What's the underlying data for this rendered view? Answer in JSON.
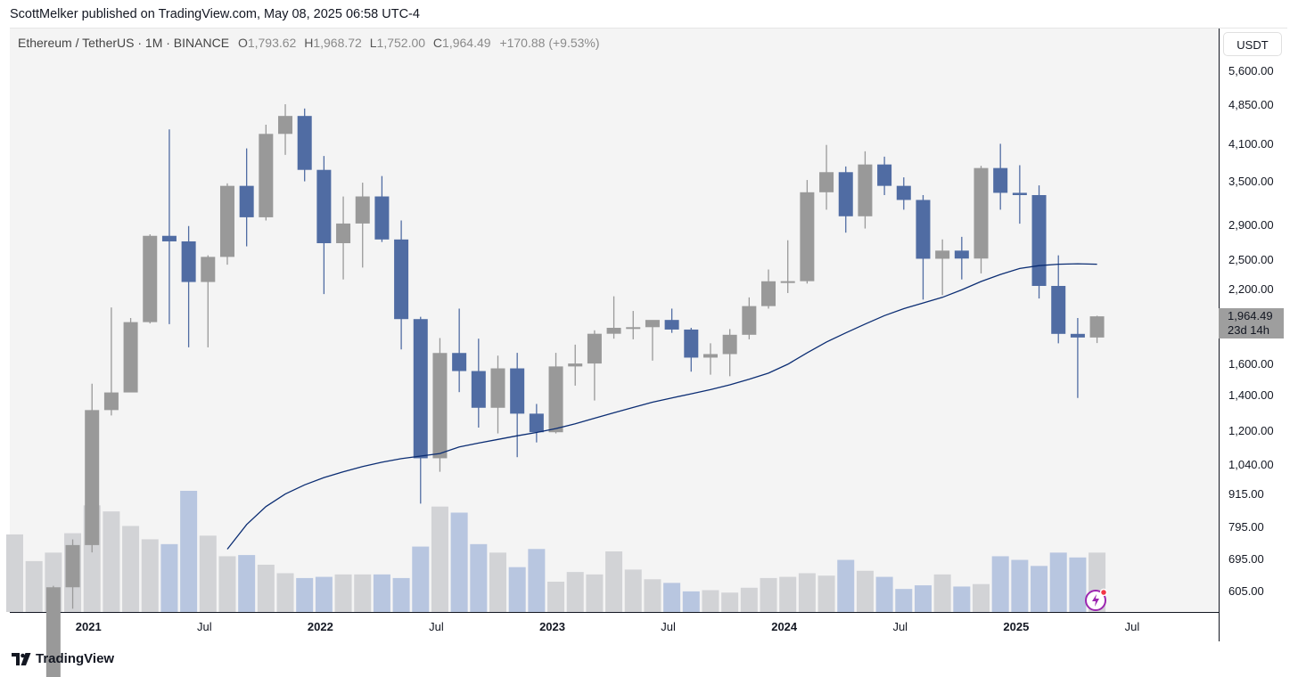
{
  "header": {
    "published": "ScottMelker published on TradingView.com, May 08, 2025 06:58 UTC-4"
  },
  "legend": {
    "symbol": "Ethereum / TetherUS · 1M · BINANCE",
    "o_label": "O",
    "o_value": "1,793.62",
    "h_label": "H",
    "h_value": "1,968.72",
    "l_label": "L",
    "l_value": "1,752.00",
    "c_label": "C",
    "c_value": "1,964.49",
    "change": "+170.88 (+9.53%)"
  },
  "price_axis": {
    "currency": "USDT",
    "ticks": [
      "5,600.00",
      "4,850.00",
      "4,100.00",
      "3,500.00",
      "2,900.00",
      "2,500.00",
      "2,200.00",
      "1,600.00",
      "1,400.00",
      "1,200.00",
      "1,040.00",
      "915.00",
      "795.00",
      "695.00",
      "605.00"
    ],
    "last_price": "1,964.49",
    "countdown": "23d 14h"
  },
  "time_axis": {
    "ticks": [
      {
        "label": "2021",
        "year": true
      },
      {
        "label": "Jul",
        "year": false
      },
      {
        "label": "2022",
        "year": true
      },
      {
        "label": "Jul",
        "year": false
      },
      {
        "label": "2023",
        "year": true
      },
      {
        "label": "Jul",
        "year": false
      },
      {
        "label": "2024",
        "year": true
      },
      {
        "label": "Jul",
        "year": false
      },
      {
        "label": "2025",
        "year": true
      },
      {
        "label": "Jul",
        "year": false
      }
    ]
  },
  "brand": {
    "name": "TradingView"
  },
  "icons": {
    "logo": "tradingview-logo-icon",
    "flash": "flash-icon"
  },
  "colors": {
    "up": "#999999",
    "down": "#506ca3",
    "ma": "#0b2d73",
    "vol_up": "#d2d3d6",
    "vol_down": "#b8c6e0"
  },
  "chart_data": {
    "type": "candlestick",
    "interval": "1M",
    "y_scale": "log",
    "series": [
      {
        "t": "2020-09",
        "o": null,
        "h": null,
        "l": null,
        "c": null,
        "vol": 0.64
      },
      {
        "t": "2020-10",
        "o": null,
        "h": null,
        "l": null,
        "c": null,
        "vol": 0.42
      },
      {
        "t": "2020-11",
        "o": 390,
        "h": 620,
        "l": 375,
        "c": 616,
        "vol": 0.49
      },
      {
        "t": "2020-12",
        "o": 616,
        "h": 756,
        "l": 562,
        "c": 738,
        "vol": 0.65
      },
      {
        "t": "2021-01",
        "o": 738,
        "h": 1472,
        "l": 715,
        "c": 1315,
        "vol": 0.88
      },
      {
        "t": "2021-02",
        "o": 1315,
        "h": 2040,
        "l": 1285,
        "c": 1418,
        "vol": 0.83
      },
      {
        "t": "2021-03",
        "o": 1418,
        "h": 1950,
        "l": 1420,
        "c": 1916,
        "vol": 0.71
      },
      {
        "t": "2021-04",
        "o": 1916,
        "h": 2790,
        "l": 1905,
        "c": 2772,
        "vol": 0.6
      },
      {
        "t": "2021-05",
        "o": 2772,
        "h": 4372,
        "l": 1900,
        "c": 2707,
        "vol": 0.56
      },
      {
        "t": "2021-06",
        "o": 2707,
        "h": 2890,
        "l": 1720,
        "c": 2275,
        "vol": 1.0
      },
      {
        "t": "2021-07",
        "o": 2275,
        "h": 2550,
        "l": 1720,
        "c": 2533,
        "vol": 0.63
      },
      {
        "t": "2021-08",
        "o": 2533,
        "h": 3470,
        "l": 2450,
        "c": 3433,
        "vol": 0.46
      },
      {
        "t": "2021-09",
        "o": 3433,
        "h": 4030,
        "l": 2650,
        "c": 3001,
        "vol": 0.47
      },
      {
        "t": "2021-10",
        "o": 3001,
        "h": 4460,
        "l": 2960,
        "c": 4288,
        "vol": 0.39
      },
      {
        "t": "2021-11",
        "o": 4288,
        "h": 4868,
        "l": 3920,
        "c": 4630,
        "vol": 0.32
      },
      {
        "t": "2021-12",
        "o": 4630,
        "h": 4780,
        "l": 3500,
        "c": 3676,
        "vol": 0.28
      },
      {
        "t": "2022-01",
        "o": 3676,
        "h": 3900,
        "l": 2160,
        "c": 2686,
        "vol": 0.29
      },
      {
        "t": "2022-02",
        "o": 2686,
        "h": 3280,
        "l": 2300,
        "c": 2922,
        "vol": 0.31
      },
      {
        "t": "2022-03",
        "o": 2922,
        "h": 3480,
        "l": 2420,
        "c": 3281,
        "vol": 0.31
      },
      {
        "t": "2022-04",
        "o": 3281,
        "h": 3580,
        "l": 2700,
        "c": 2729,
        "vol": 0.31
      },
      {
        "t": "2022-05",
        "o": 2729,
        "h": 2960,
        "l": 1705,
        "c": 1941,
        "vol": 0.28
      },
      {
        "t": "2022-06",
        "o": 1941,
        "h": 1960,
        "l": 881,
        "c": 1070,
        "vol": 0.54
      },
      {
        "t": "2022-07",
        "o": 1070,
        "h": 1790,
        "l": 1010,
        "c": 1679,
        "vol": 0.87
      },
      {
        "t": "2022-08",
        "o": 1679,
        "h": 2030,
        "l": 1420,
        "c": 1554,
        "vol": 0.82
      },
      {
        "t": "2022-09",
        "o": 1554,
        "h": 1785,
        "l": 1220,
        "c": 1328,
        "vol": 0.56
      },
      {
        "t": "2022-10",
        "o": 1328,
        "h": 1660,
        "l": 1190,
        "c": 1572,
        "vol": 0.49
      },
      {
        "t": "2022-11",
        "o": 1572,
        "h": 1680,
        "l": 1075,
        "c": 1295,
        "vol": 0.37
      },
      {
        "t": "2022-12",
        "o": 1295,
        "h": 1350,
        "l": 1145,
        "c": 1196,
        "vol": 0.52
      },
      {
        "t": "2023-01",
        "o": 1196,
        "h": 1680,
        "l": 1190,
        "c": 1585,
        "vol": 0.25
      },
      {
        "t": "2023-02",
        "o": 1585,
        "h": 1740,
        "l": 1460,
        "c": 1605,
        "vol": 0.33
      },
      {
        "t": "2023-03",
        "o": 1605,
        "h": 1850,
        "l": 1370,
        "c": 1823,
        "vol": 0.31
      },
      {
        "t": "2023-04",
        "o": 1823,
        "h": 2140,
        "l": 1785,
        "c": 1870,
        "vol": 0.5
      },
      {
        "t": "2023-05",
        "o": 1870,
        "h": 2010,
        "l": 1780,
        "c": 1875,
        "vol": 0.35
      },
      {
        "t": "2023-06",
        "o": 1875,
        "h": 1930,
        "l": 1625,
        "c": 1934,
        "vol": 0.27
      },
      {
        "t": "2023-07",
        "o": 1934,
        "h": 2030,
        "l": 1830,
        "c": 1856,
        "vol": 0.24
      },
      {
        "t": "2023-08",
        "o": 1856,
        "h": 1870,
        "l": 1550,
        "c": 1646,
        "vol": 0.17
      },
      {
        "t": "2023-09",
        "o": 1646,
        "h": 1750,
        "l": 1530,
        "c": 1671,
        "vol": 0.18
      },
      {
        "t": "2023-10",
        "o": 1671,
        "h": 1860,
        "l": 1520,
        "c": 1815,
        "vol": 0.16
      },
      {
        "t": "2023-11",
        "o": 1815,
        "h": 2130,
        "l": 1780,
        "c": 2052,
        "vol": 0.2
      },
      {
        "t": "2023-12",
        "o": 2052,
        "h": 2400,
        "l": 2030,
        "c": 2282,
        "vol": 0.28
      },
      {
        "t": "2024-01",
        "o": 2282,
        "h": 2720,
        "l": 2170,
        "c": 2283,
        "vol": 0.29
      },
      {
        "t": "2024-02",
        "o": 2283,
        "h": 3520,
        "l": 2260,
        "c": 3340,
        "vol": 0.32
      },
      {
        "t": "2024-03",
        "o": 3340,
        "h": 4090,
        "l": 3100,
        "c": 3640,
        "vol": 0.3
      },
      {
        "t": "2024-04",
        "o": 3640,
        "h": 3730,
        "l": 2810,
        "c": 3014,
        "vol": 0.43
      },
      {
        "t": "2024-05",
        "o": 3014,
        "h": 3980,
        "l": 2860,
        "c": 3762,
        "vol": 0.34
      },
      {
        "t": "2024-06",
        "o": 3762,
        "h": 3890,
        "l": 3300,
        "c": 3433,
        "vol": 0.29
      },
      {
        "t": "2024-07",
        "o": 3433,
        "h": 3560,
        "l": 3100,
        "c": 3232,
        "vol": 0.19
      },
      {
        "t": "2024-08",
        "o": 3232,
        "h": 3300,
        "l": 2110,
        "c": 2513,
        "vol": 0.22
      },
      {
        "t": "2024-09",
        "o": 2513,
        "h": 2730,
        "l": 2150,
        "c": 2602,
        "vol": 0.31
      },
      {
        "t": "2024-10",
        "o": 2602,
        "h": 2760,
        "l": 2300,
        "c": 2515,
        "vol": 0.21
      },
      {
        "t": "2024-11",
        "o": 2515,
        "h": 3740,
        "l": 2360,
        "c": 3705,
        "vol": 0.23
      },
      {
        "t": "2024-12",
        "o": 3705,
        "h": 4110,
        "l": 3100,
        "c": 3332,
        "vol": 0.46
      },
      {
        "t": "2025-01",
        "o": 3332,
        "h": 3750,
        "l": 2920,
        "c": 3300,
        "vol": 0.43
      },
      {
        "t": "2025-02",
        "o": 3300,
        "h": 3440,
        "l": 2120,
        "c": 2237,
        "vol": 0.38
      },
      {
        "t": "2025-03",
        "o": 2237,
        "h": 2550,
        "l": 1750,
        "c": 1822,
        "vol": 0.49
      },
      {
        "t": "2025-04",
        "o": 1822,
        "h": 1950,
        "l": 1385,
        "c": 1794,
        "vol": 0.45
      },
      {
        "t": "2025-05",
        "o": 1794,
        "h": 1969,
        "l": 1752,
        "c": 1964,
        "vol": 0.49
      }
    ],
    "ma": [
      {
        "t": "2021-08",
        "v": 725
      },
      {
        "t": "2021-09",
        "v": 806
      },
      {
        "t": "2021-10",
        "v": 870
      },
      {
        "t": "2021-11",
        "v": 918
      },
      {
        "t": "2021-12",
        "v": 955
      },
      {
        "t": "2022-01",
        "v": 985
      },
      {
        "t": "2022-02",
        "v": 1010
      },
      {
        "t": "2022-03",
        "v": 1033
      },
      {
        "t": "2022-04",
        "v": 1052
      },
      {
        "t": "2022-05",
        "v": 1068
      },
      {
        "t": "2022-06",
        "v": 1080
      },
      {
        "t": "2022-07",
        "v": 1092
      },
      {
        "t": "2022-08",
        "v": 1123
      },
      {
        "t": "2022-09",
        "v": 1142
      },
      {
        "t": "2022-10",
        "v": 1160
      },
      {
        "t": "2022-11",
        "v": 1178
      },
      {
        "t": "2022-12",
        "v": 1195
      },
      {
        "t": "2023-01",
        "v": 1215
      },
      {
        "t": "2023-02",
        "v": 1240
      },
      {
        "t": "2023-03",
        "v": 1270
      },
      {
        "t": "2023-04",
        "v": 1300
      },
      {
        "t": "2023-05",
        "v": 1330
      },
      {
        "t": "2023-06",
        "v": 1360
      },
      {
        "t": "2023-07",
        "v": 1385
      },
      {
        "t": "2023-08",
        "v": 1410
      },
      {
        "t": "2023-09",
        "v": 1435
      },
      {
        "t": "2023-10",
        "v": 1465
      },
      {
        "t": "2023-11",
        "v": 1500
      },
      {
        "t": "2023-12",
        "v": 1540
      },
      {
        "t": "2024-01",
        "v": 1600
      },
      {
        "t": "2024-02",
        "v": 1680
      },
      {
        "t": "2024-03",
        "v": 1760
      },
      {
        "t": "2024-04",
        "v": 1830
      },
      {
        "t": "2024-05",
        "v": 1900
      },
      {
        "t": "2024-06",
        "v": 1970
      },
      {
        "t": "2024-07",
        "v": 2030
      },
      {
        "t": "2024-08",
        "v": 2080
      },
      {
        "t": "2024-09",
        "v": 2130
      },
      {
        "t": "2024-10",
        "v": 2200
      },
      {
        "t": "2024-11",
        "v": 2280
      },
      {
        "t": "2024-12",
        "v": 2350
      },
      {
        "t": "2025-01",
        "v": 2410
      },
      {
        "t": "2025-02",
        "v": 2440
      },
      {
        "t": "2025-03",
        "v": 2455
      },
      {
        "t": "2025-04",
        "v": 2460
      },
      {
        "t": "2025-05",
        "v": 2455
      }
    ],
    "ylim": [
      560,
      6000
    ],
    "grid": false
  }
}
